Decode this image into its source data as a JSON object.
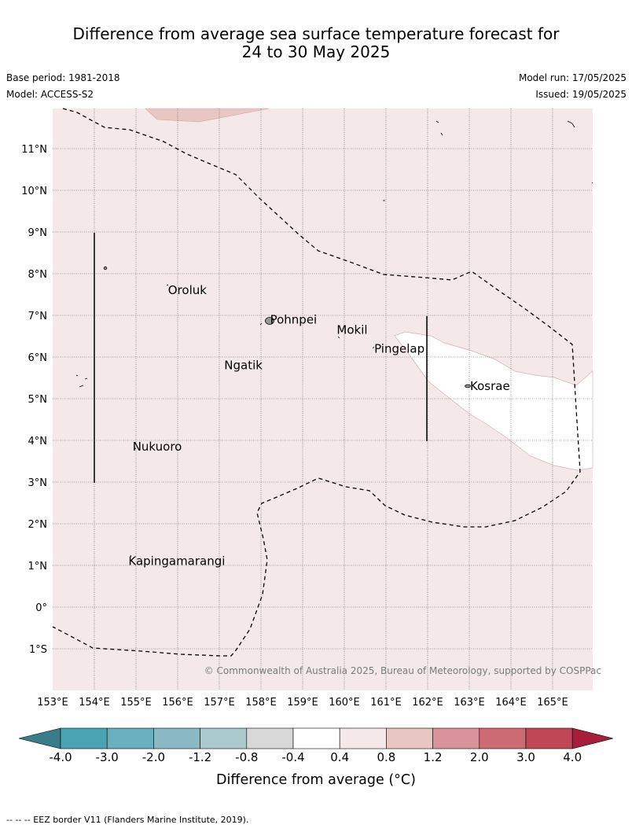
{
  "header": {
    "title_line1": "Difference from average sea surface temperature forecast for",
    "title_line2": "24 to 30 May 2025",
    "base_period": "Base period: 1981-2018",
    "model": "Model: ACCESS-S2",
    "model_run": "Model run: 17/05/2025",
    "issued": "Issued: 19/05/2025"
  },
  "map": {
    "lat_labels": [
      "11°N",
      "10°N",
      "9°N",
      "8°N",
      "7°N",
      "6°N",
      "5°N",
      "4°N",
      "3°N",
      "2°N",
      "1°N",
      "0°",
      "1°S"
    ],
    "lon_labels": [
      "153°E",
      "154°E",
      "155°E",
      "156°E",
      "157°E",
      "158°E",
      "159°E",
      "160°E",
      "161°E",
      "162°E",
      "163°E",
      "164°E",
      "165°E"
    ],
    "places": [
      {
        "name": "Oroluk",
        "lon": 155.75,
        "lat": 7.6
      },
      {
        "name": "Pohnpei",
        "lon": 158.2,
        "lat": 6.9
      },
      {
        "name": "Mokil",
        "lon": 159.8,
        "lat": 6.65
      },
      {
        "name": "Pingelap",
        "lon": 160.7,
        "lat": 6.2
      },
      {
        "name": "Ngatik",
        "lon": 157.1,
        "lat": 5.8
      },
      {
        "name": "Kosrae",
        "lon": 163.0,
        "lat": 5.3
      },
      {
        "name": "Nukuoro",
        "lon": 154.9,
        "lat": 3.85
      },
      {
        "name": "Kapingamarangi",
        "lon": 154.8,
        "lat": 1.1
      }
    ],
    "copyright": "© Commonwealth of Australia 2025, Bureau of Meteorology, supported by COSPPac",
    "land_color": "#9a9a9a",
    "base_fill_color": "#f4e9e8"
  },
  "colorbar": {
    "labels": [
      "-4.0",
      "-3.0",
      "-2.0",
      "-1.2",
      "-0.8",
      "-0.4",
      "0.4",
      "0.8",
      "1.2",
      "2.0",
      "3.0",
      "4.0"
    ],
    "colors": [
      "#49a3b3",
      "#69afbe",
      "#8ab9c4",
      "#a9c9cd",
      "#d8d8d8",
      "#ffffff",
      "#f4e9e8",
      "#e8c6c1",
      "#d9939a",
      "#cd6b74",
      "#c04756"
    ],
    "under_color": "#3a7d8a",
    "over_color": "#a81d3a",
    "title": "Difference from average (°C)"
  },
  "footnote": "-- -- -- EEZ border V11 (Flanders Marine Institute, 2019)."
}
